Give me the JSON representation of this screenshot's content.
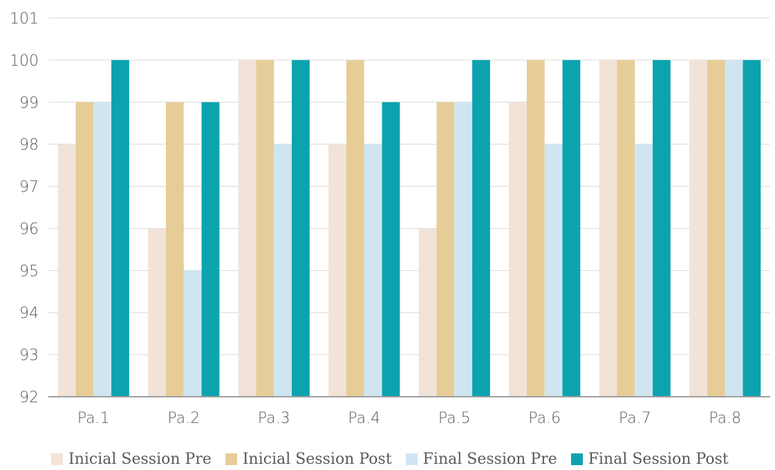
{
  "chart_data": {
    "type": "bar",
    "title": "",
    "xlabel": "",
    "ylabel": "",
    "categories": [
      "Pa.1",
      "Pa.2",
      "Pa.3",
      "Pa.4",
      "Pa.5",
      "Pa.6",
      "Pa.7",
      "Pa.8"
    ],
    "ylim": [
      92,
      101
    ],
    "yticks": [
      "92",
      "93",
      "94",
      "95",
      "96",
      "97",
      "98",
      "99",
      "100",
      "101"
    ],
    "grid": true,
    "legend_position": "bottom",
    "series": [
      {
        "name": "Inicial Session Pre",
        "color": "#f2e3d9",
        "values": [
          98,
          96,
          100,
          98,
          96,
          99,
          100,
          100
        ]
      },
      {
        "name": "Inicial Session Post",
        "color": "#e6cd98",
        "values": [
          99,
          99,
          100,
          100,
          99,
          100,
          100,
          100
        ]
      },
      {
        "name": "Final Session Pre",
        "color": "#cfe6f1",
        "values": [
          99,
          95,
          98,
          98,
          99,
          98,
          98,
          100
        ]
      },
      {
        "name": "Final Session Post",
        "color": "#0ca3af",
        "values": [
          100,
          99,
          100,
          99,
          100,
          100,
          100,
          100
        ]
      }
    ]
  }
}
